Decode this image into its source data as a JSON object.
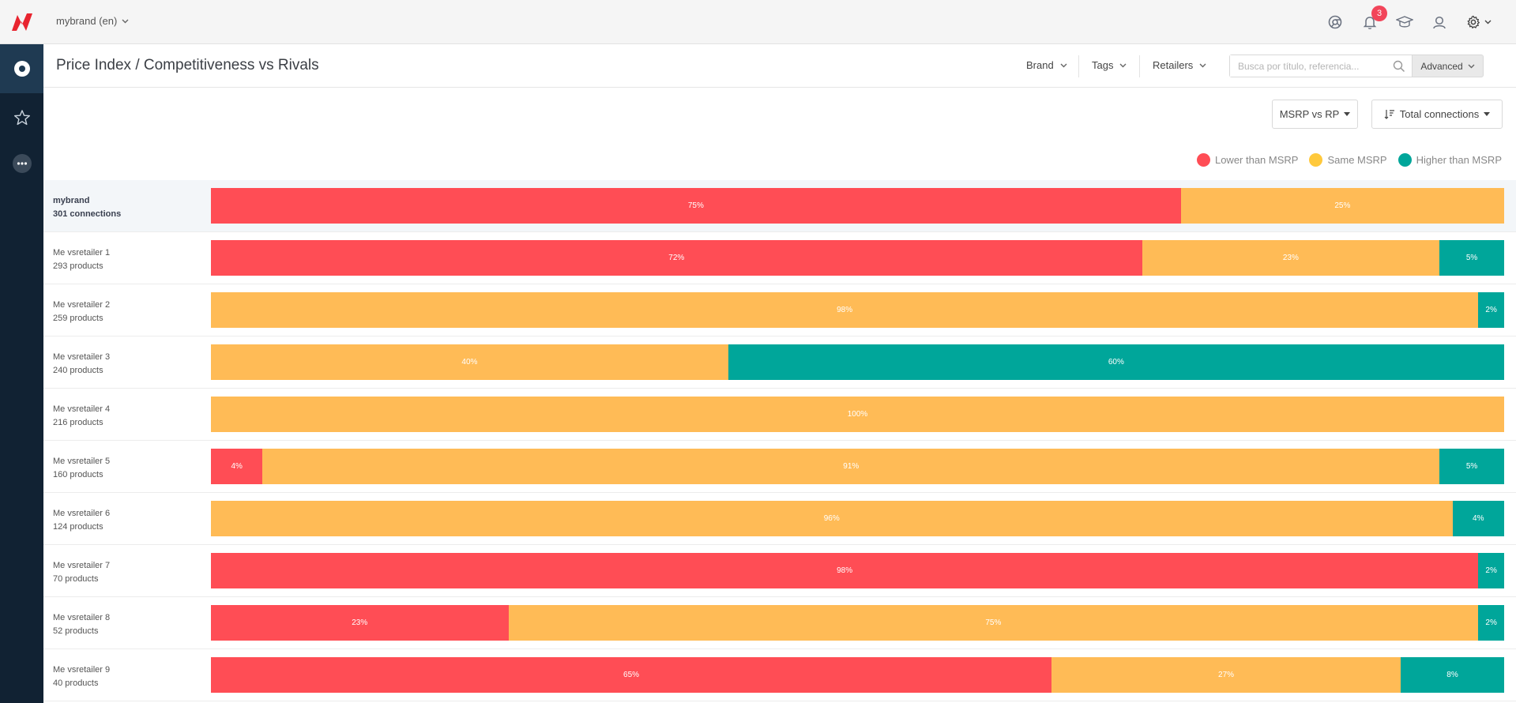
{
  "app": {
    "brand_selector": "mybrand (en)",
    "notification_count": "3"
  },
  "colors": {
    "lower": "#ff4d55",
    "same": "#ffbb56",
    "higher": "#00a69a",
    "nav_bg": "#112233",
    "brand_red": "#e8242f"
  },
  "header": {
    "title": "Price Index / Competitiveness vs Rivals",
    "filters": [
      "Brand",
      "Tags",
      "Retailers"
    ],
    "search_placeholder": "Busca por título, referencia...",
    "advanced_label": "Advanced"
  },
  "controls": {
    "comparison": "MSRP vs RP",
    "sort": "Total connections"
  },
  "legend": {
    "lower": "Lower than MSRP",
    "same": "Same MSRP",
    "higher": "Higher than MSRP"
  },
  "rows": [
    {
      "name": "mybrand",
      "sub": "301 connections",
      "highlight": true,
      "segments": [
        {
          "type": "lower",
          "value": 75,
          "label": "75%"
        },
        {
          "type": "same",
          "value": 25,
          "label": "25%"
        }
      ]
    },
    {
      "name": "Me vsretailer 1",
      "sub": "293 products",
      "segments": [
        {
          "type": "lower",
          "value": 72,
          "label": "72%"
        },
        {
          "type": "same",
          "value": 23,
          "label": "23%"
        },
        {
          "type": "higher",
          "value": 5,
          "label": "5%"
        }
      ]
    },
    {
      "name": "Me vsretailer 2",
      "sub": "259 products",
      "segments": [
        {
          "type": "same",
          "value": 98,
          "label": "98%"
        },
        {
          "type": "higher",
          "value": 2,
          "label": "2%"
        }
      ]
    },
    {
      "name": "Me vsretailer 3",
      "sub": "240 products",
      "segments": [
        {
          "type": "same",
          "value": 40,
          "label": "40%"
        },
        {
          "type": "higher",
          "value": 60,
          "label": "60%"
        }
      ]
    },
    {
      "name": "Me vsretailer 4",
      "sub": "216 products",
      "segments": [
        {
          "type": "same",
          "value": 100,
          "label": "100%"
        }
      ]
    },
    {
      "name": "Me vsretailer 5",
      "sub": "160 products",
      "segments": [
        {
          "type": "lower",
          "value": 4,
          "label": "4%"
        },
        {
          "type": "same",
          "value": 91,
          "label": "91%"
        },
        {
          "type": "higher",
          "value": 5,
          "label": "5%"
        }
      ]
    },
    {
      "name": "Me vsretailer 6",
      "sub": "124 products",
      "segments": [
        {
          "type": "same",
          "value": 96,
          "label": "96%"
        },
        {
          "type": "higher",
          "value": 4,
          "label": "4%"
        }
      ]
    },
    {
      "name": "Me vsretailer 7",
      "sub": "70 products",
      "segments": [
        {
          "type": "lower",
          "value": 98,
          "label": "98%"
        },
        {
          "type": "higher",
          "value": 2,
          "label": "2%"
        }
      ]
    },
    {
      "name": "Me vsretailer 8",
      "sub": "52 products",
      "segments": [
        {
          "type": "lower",
          "value": 23,
          "label": "23%"
        },
        {
          "type": "same",
          "value": 75,
          "label": "75%"
        },
        {
          "type": "higher",
          "value": 2,
          "label": "2%"
        }
      ]
    },
    {
      "name": "Me vsretailer 9",
      "sub": "40 products",
      "segments": [
        {
          "type": "lower",
          "value": 65,
          "label": "65%"
        },
        {
          "type": "same",
          "value": 27,
          "label": "27%"
        },
        {
          "type": "higher",
          "value": 8,
          "label": "8%"
        }
      ]
    }
  ],
  "chart_data": {
    "type": "bar",
    "orientation": "horizontal",
    "stacked": true,
    "title": "Price Index / Competitiveness vs Rivals",
    "categories": [
      "mybrand",
      "Me vsretailer 1",
      "Me vsretailer 2",
      "Me vsretailer 3",
      "Me vsretailer 4",
      "Me vsretailer 5",
      "Me vsretailer 6",
      "Me vsretailer 7",
      "Me vsretailer 8",
      "Me vsretailer 9"
    ],
    "series": [
      {
        "name": "Lower than MSRP",
        "values": [
          75,
          72,
          0,
          0,
          0,
          4,
          0,
          98,
          23,
          65
        ]
      },
      {
        "name": "Same MSRP",
        "values": [
          25,
          23,
          98,
          40,
          100,
          91,
          96,
          0,
          75,
          27
        ]
      },
      {
        "name": "Higher than MSRP",
        "values": [
          0,
          5,
          2,
          60,
          0,
          5,
          4,
          2,
          2,
          8
        ]
      }
    ],
    "xlim": [
      0,
      100
    ],
    "legend": "top-right"
  }
}
